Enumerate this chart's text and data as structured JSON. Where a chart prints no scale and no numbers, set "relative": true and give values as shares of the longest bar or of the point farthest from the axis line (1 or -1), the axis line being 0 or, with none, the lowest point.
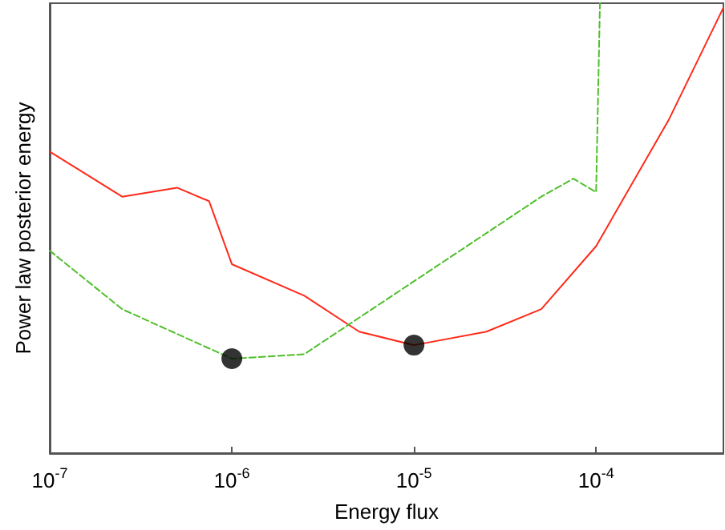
{
  "chart_data": {
    "type": "line",
    "xlabel": "Energy flux",
    "ylabel": "Power law posterior energy",
    "relative": true,
    "log": "x",
    "grid": false,
    "xlim": [
      1e-07,
      0.0005
    ],
    "xticks": [
      {
        "value": 1e-07,
        "label": "10$^{-7}$"
      },
      {
        "value": 1e-06,
        "label": "10$^{-6}$"
      },
      {
        "value": 1e-05,
        "label": "10$^{-5}$"
      },
      {
        "value": 0.0001,
        "label": "10$^{-4}$"
      }
    ],
    "series": [
      {
        "color": "#ff2a1a",
        "line_style": "solid",
        "marker": "none",
        "x": [
          1e-07,
          2.5e-07,
          5e-07,
          7.5e-07,
          1e-06,
          2.5e-06,
          5e-06,
          1e-05,
          2.5e-05,
          5e-05,
          0.0001,
          0.00025,
          0.0005
        ],
        "values": [
          0.67,
          0.57,
          0.59,
          0.56,
          0.42,
          0.35,
          0.27,
          0.24,
          0.27,
          0.32,
          0.46,
          0.74,
          0.99
        ]
      },
      {
        "color": "#4fbf2a",
        "line_style": "dashed",
        "marker": "none",
        "x": [
          1e-07,
          2.5e-07,
          1e-06,
          2.5e-06,
          5e-05,
          7.5e-05,
          0.0001,
          0.000105
        ],
        "values": [
          0.45,
          0.32,
          0.21,
          0.22,
          0.57,
          0.61,
          0.58,
          1.0
        ]
      },
      {
        "type": "scatter",
        "color": "#000000",
        "marker": "circle",
        "x": [
          1e-06,
          1e-05
        ],
        "values": [
          0.21,
          0.24
        ]
      }
    ]
  }
}
